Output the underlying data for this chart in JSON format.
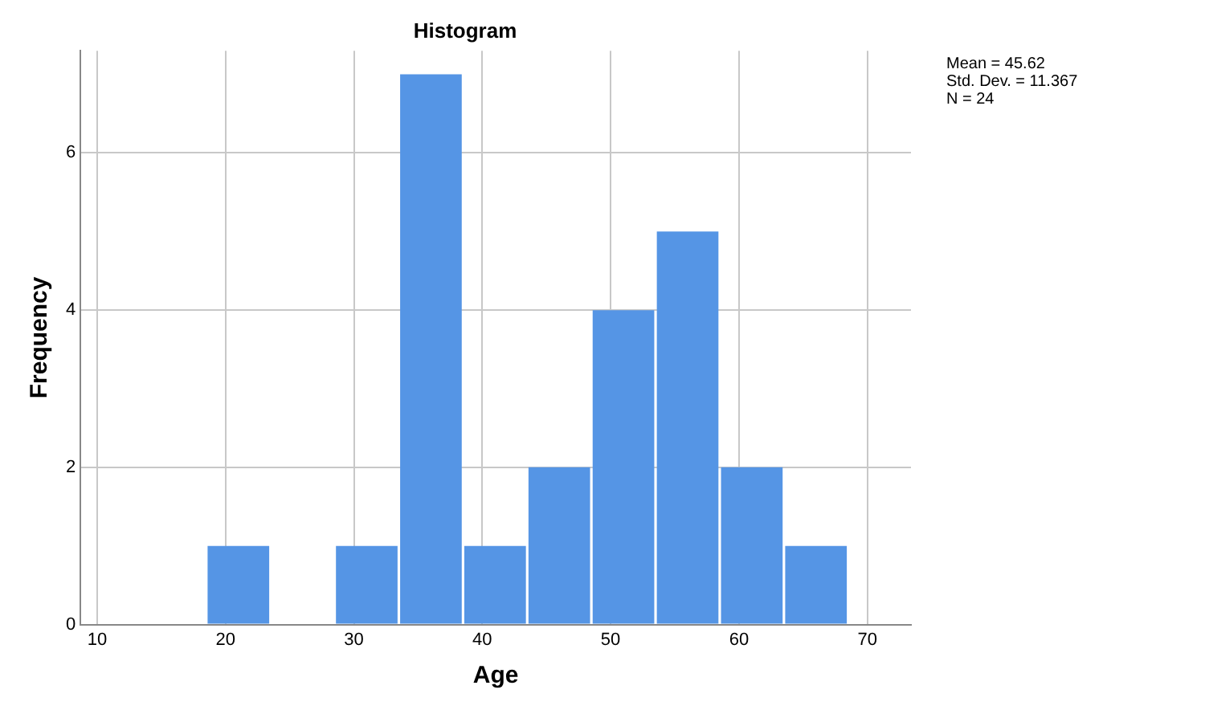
{
  "chart_data": {
    "type": "histogram",
    "title": "Histogram",
    "xlabel": "Age",
    "ylabel": "Frequency",
    "bins": [
      18.5,
      23.5,
      28.5,
      33.5,
      38.5,
      43.5,
      48.5,
      53.5,
      58.5,
      63.5,
      68.5
    ],
    "values": [
      1,
      0,
      1,
      7,
      1,
      2,
      4,
      5,
      2,
      1
    ],
    "color": "#5595e5",
    "xlim": [
      8.7,
      73.4
    ],
    "xticks": [
      10,
      20,
      30,
      40,
      50,
      60,
      70
    ],
    "ylim": [
      0,
      7.3
    ],
    "yticks": [
      0,
      2,
      4,
      6
    ],
    "grid": true,
    "annotations": [
      "Mean = 45.62",
      "Std. Dev. = 11.367",
      "N = 24"
    ]
  }
}
